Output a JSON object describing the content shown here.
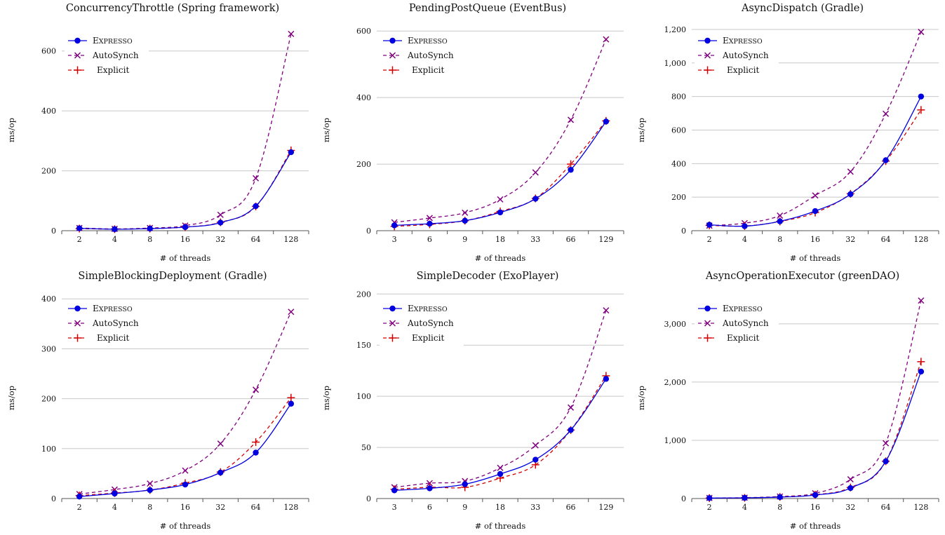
{
  "colors": {
    "expresso": "#0000e0",
    "autosynch": "#800080",
    "explicit": "#d40000",
    "grid": "#c8c8c8"
  },
  "legend": {
    "items": [
      "Expresso",
      "AutoSynch",
      "Explicit"
    ]
  },
  "chart_data": [
    {
      "type": "line",
      "title": "ConcurrencyThrottle (Spring framework)",
      "xlabel": "# of threads",
      "ylabel": "ms/op",
      "categories": [
        "2",
        "4",
        "8",
        "16",
        "32",
        "64",
        "128"
      ],
      "ylim": [
        0,
        700
      ],
      "yticks": [
        0,
        200,
        400,
        600
      ],
      "ytick_labels": [
        "0",
        "200",
        "400",
        "600"
      ],
      "grid": true,
      "legend_position": "top-left",
      "series": [
        {
          "name": "Expresso",
          "values": [
            8,
            5,
            7,
            12,
            27,
            82,
            262
          ]
        },
        {
          "name": "AutoSynch",
          "values": [
            9,
            6,
            9,
            17,
            53,
            175,
            657
          ]
        },
        {
          "name": "Explicit",
          "values": [
            7,
            5,
            7,
            12,
            28,
            81,
            268
          ]
        }
      ]
    },
    {
      "type": "line",
      "title": "PendingPostQueue (EventBus)",
      "xlabel": "# of threads",
      "ylabel": "ms/op",
      "categories": [
        "3",
        "6",
        "9",
        "18",
        "33",
        "66",
        "129"
      ],
      "ylim": [
        0,
        630
      ],
      "yticks": [
        0,
        200,
        400,
        600
      ],
      "ytick_labels": [
        "0",
        "200",
        "400",
        "600"
      ],
      "grid": true,
      "legend_position": "top-left",
      "series": [
        {
          "name": "Expresso",
          "values": [
            16,
            21,
            30,
            55,
            96,
            183,
            328
          ]
        },
        {
          "name": "AutoSynch",
          "values": [
            25,
            38,
            54,
            94,
            175,
            333,
            575
          ]
        },
        {
          "name": "Explicit",
          "values": [
            13,
            19,
            30,
            58,
            97,
            200,
            330
          ]
        }
      ]
    },
    {
      "type": "line",
      "title": "AsyncDispatch (Gradle)",
      "xlabel": "# of threads",
      "ylabel": "ms/op",
      "categories": [
        "2",
        "4",
        "8",
        "16",
        "32",
        "64",
        "128"
      ],
      "ylim": [
        0,
        1250
      ],
      "yticks": [
        0,
        200,
        400,
        600,
        800,
        1000,
        1200
      ],
      "ytick_labels": [
        "0",
        "200",
        "400",
        "600",
        "800",
        "1,000",
        "1,200"
      ],
      "grid": true,
      "legend_position": "top-left",
      "series": [
        {
          "name": "Expresso",
          "values": [
            35,
            27,
            56,
            117,
            218,
            420,
            800
          ]
        },
        {
          "name": "AutoSynch",
          "values": [
            30,
            45,
            90,
            210,
            352,
            697,
            1185
          ]
        },
        {
          "name": "Explicit",
          "values": [
            32,
            28,
            55,
            108,
            220,
            415,
            720
          ]
        }
      ]
    },
    {
      "type": "line",
      "title": "SimpleBlockingDeployment (Gradle)",
      "xlabel": "# of threads",
      "ylabel": "ms/op",
      "categories": [
        "2",
        "4",
        "8",
        "16",
        "32",
        "64",
        "128"
      ],
      "ylim": [
        0,
        420
      ],
      "yticks": [
        0,
        100,
        200,
        300,
        400
      ],
      "ytick_labels": [
        "0",
        "100",
        "200",
        "300",
        "400"
      ],
      "grid": true,
      "legend_position": "top-left",
      "series": [
        {
          "name": "Expresso",
          "values": [
            4,
            10,
            17,
            28,
            52,
            92,
            190
          ]
        },
        {
          "name": "AutoSynch",
          "values": [
            9,
            18,
            30,
            56,
            110,
            218,
            374
          ]
        },
        {
          "name": "Explicit",
          "values": [
            6,
            11,
            17,
            31,
            53,
            113,
            202
          ]
        }
      ]
    },
    {
      "type": "line",
      "title": "SimpleDecoder (ExoPlayer)",
      "xlabel": "# of threads",
      "ylabel": "ms/op",
      "categories": [
        "3",
        "6",
        "9",
        "18",
        "33",
        "66",
        "129"
      ],
      "ylim": [
        0,
        205
      ],
      "yticks": [
        0,
        50,
        100,
        150,
        200
      ],
      "ytick_labels": [
        "0",
        "50",
        "100",
        "150",
        "200"
      ],
      "grid": true,
      "legend_position": "top-left",
      "series": [
        {
          "name": "Expresso",
          "values": [
            8,
            10,
            14,
            24,
            38,
            67,
            117
          ]
        },
        {
          "name": "AutoSynch",
          "values": [
            11,
            15,
            17,
            30,
            52,
            89,
            184
          ]
        },
        {
          "name": "Explicit",
          "values": [
            9,
            11,
            11,
            20,
            33,
            67,
            120
          ]
        }
      ]
    },
    {
      "type": "line",
      "title": "AsyncOperationExecutor (greenDAO)",
      "xlabel": "# of threads",
      "ylabel": "ms/op",
      "categories": [
        "2",
        "4",
        "8",
        "16",
        "32",
        "64",
        "128"
      ],
      "ylim": [
        0,
        3600
      ],
      "yticks": [
        0,
        1000,
        2000,
        3000
      ],
      "ytick_labels": [
        "0",
        "1,000",
        "2,000",
        "3,000"
      ],
      "grid": true,
      "legend_position": "top-left",
      "series": [
        {
          "name": "Expresso",
          "values": [
            8,
            12,
            25,
            60,
            180,
            640,
            2180
          ]
        },
        {
          "name": "AutoSynch",
          "values": [
            10,
            15,
            35,
            90,
            330,
            950,
            3400
          ]
        },
        {
          "name": "Explicit",
          "values": [
            8,
            12,
            28,
            65,
            190,
            640,
            2350
          ]
        }
      ]
    }
  ]
}
